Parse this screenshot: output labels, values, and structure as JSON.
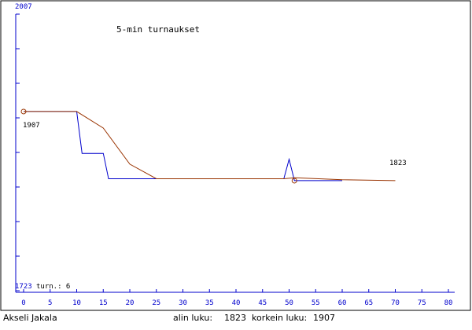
{
  "chart_data": {
    "type": "line",
    "title": "5-min turnaukset",
    "y_top_label": "2007",
    "y_bottom_label": "1723",
    "turns_label": "turn.: 6",
    "ylim": [
      1723,
      2007
    ],
    "xlim": [
      0,
      80
    ],
    "x_ticks": [
      0,
      5,
      10,
      15,
      20,
      25,
      30,
      35,
      40,
      45,
      50,
      55,
      60,
      65,
      70,
      75,
      80
    ],
    "y_tick_count": 9,
    "grid": false,
    "start_annotation": "1907",
    "end_annotation": "1823",
    "colors": {
      "axis": "#0000cc",
      "blue_series": "#0000cc",
      "red_series": "#993300",
      "frame": "#000000"
    },
    "series": [
      {
        "color": "#0000cc",
        "x": [
          0,
          10,
          11,
          15,
          16,
          25,
          49,
          50,
          51,
          60
        ],
        "y": [
          1907,
          1907,
          1864,
          1864,
          1838,
          1838,
          1838,
          1858,
          1836,
          1836
        ]
      },
      {
        "color": "#993300",
        "x": [
          0,
          10,
          15,
          20,
          25,
          49,
          51,
          60,
          70
        ],
        "y": [
          1907,
          1907,
          1890,
          1853,
          1838,
          1838,
          1839,
          1837,
          1836
        ]
      }
    ],
    "markers": [
      {
        "x": 0,
        "y": 1907
      },
      {
        "x": 51,
        "y": 1836
      }
    ]
  },
  "footer": {
    "player_name": "Akseli Jakala",
    "min_label": "alin luku:",
    "min_value": "1823",
    "max_label": "korkein luku:",
    "max_value": "1907"
  }
}
